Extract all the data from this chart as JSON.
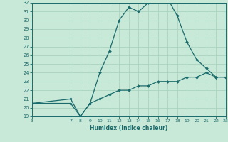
{
  "xlabel": "Humidex (Indice chaleur)",
  "bg_color": "#c8e8d8",
  "line_color": "#1a6b6b",
  "grid_color": "#a8d4c0",
  "xmin": 3,
  "xmax": 23,
  "ymin": 19,
  "ymax": 32,
  "xticks": [
    3,
    7,
    8,
    9,
    10,
    11,
    12,
    13,
    14,
    15,
    16,
    17,
    18,
    19,
    20,
    21,
    22,
    23
  ],
  "yticks": [
    19,
    20,
    21,
    22,
    23,
    24,
    25,
    26,
    27,
    28,
    29,
    30,
    31,
    32
  ],
  "line1_x": [
    3,
    7,
    8,
    9,
    10,
    11,
    12,
    13,
    14,
    15,
    16,
    17,
    18,
    19,
    20,
    21,
    22,
    23
  ],
  "line1_y": [
    20.5,
    20.5,
    19.0,
    20.5,
    24.0,
    26.5,
    30.0,
    31.5,
    31.0,
    32.0,
    32.5,
    32.5,
    30.5,
    27.5,
    25.5,
    24.5,
    23.5,
    23.5
  ],
  "line2_x": [
    3,
    7,
    8,
    9,
    10,
    11,
    12,
    13,
    14,
    15,
    16,
    17,
    18,
    19,
    20,
    21,
    22,
    23
  ],
  "line2_y": [
    20.5,
    21.0,
    19.0,
    20.5,
    21.0,
    21.5,
    22.0,
    22.0,
    22.5,
    22.5,
    23.0,
    23.0,
    23.0,
    23.5,
    23.5,
    24.0,
    23.5,
    23.5
  ]
}
